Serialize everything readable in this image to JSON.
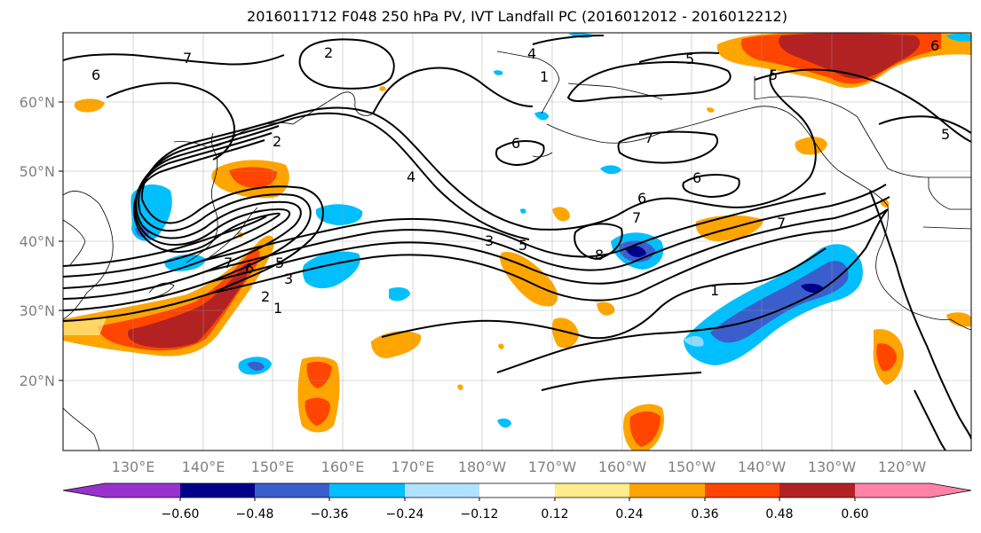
{
  "title": "2016011712 F048 250 hPa PV, IVT Landfall PC (2016012012 - 2016012212)",
  "lat_labels": [
    "60°N",
    "50°N",
    "40°N",
    "30°N",
    "20°N"
  ],
  "lon_labels": [
    "130°E",
    "140°E",
    "150°E",
    "160°E",
    "170°E",
    "180°W",
    "170°W",
    "160°W",
    "150°W",
    "140°W",
    "130°W",
    "120°W"
  ],
  "contour_labels": [
    "7",
    "6",
    "2",
    "4",
    "1",
    "5",
    "5",
    "6",
    "2",
    "6",
    "7",
    "5",
    "4",
    "6",
    "6",
    "3",
    "5",
    "7",
    "8",
    "7",
    "7",
    "6",
    "5",
    "3",
    "2",
    "1",
    "1"
  ],
  "colorbar": {
    "ticks": [
      "−0.60",
      "−0.48",
      "−0.36",
      "−0.24",
      "−0.12",
      "0.12",
      "0.24",
      "0.36",
      "0.48",
      "0.60"
    ],
    "colors": [
      "#9932cc",
      "#00008b",
      "#3a5fcd",
      "#00bfff",
      "#b0e2ff",
      "#ffffff",
      "#ffec8b",
      "#ffa500",
      "#ff4500",
      "#b22222",
      "#ff83a8"
    ]
  }
}
